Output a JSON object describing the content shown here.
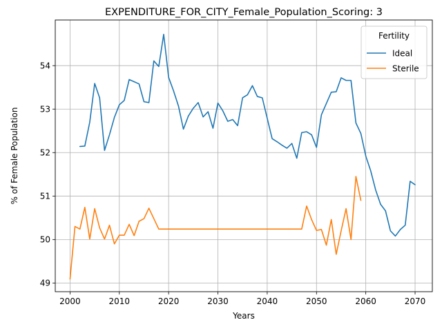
{
  "chart_data": {
    "type": "line",
    "title": "EXPENDITURE_FOR_CITY_Female_Population_Scoring: 3",
    "xlabel": "Years",
    "ylabel": "% of Female Population",
    "xlim": [
      1997,
      2073.5
    ],
    "ylim": [
      48.8,
      55.05
    ],
    "xticks": [
      2000,
      2010,
      2020,
      2030,
      2040,
      2050,
      2060,
      2070
    ],
    "yticks": [
      49,
      50,
      51,
      52,
      53,
      54
    ],
    "grid": true,
    "legend": {
      "title": "Fertility",
      "placement": "top-right"
    },
    "series": [
      {
        "name": "Ideal",
        "color": "#1f77b4",
        "x": [
          2002,
          2003,
          2004,
          2005,
          2006,
          2007,
          2008,
          2009,
          2010,
          2011,
          2012,
          2013,
          2014,
          2015,
          2016,
          2017,
          2018,
          2019,
          2020,
          2021,
          2022,
          2023,
          2024,
          2025,
          2026,
          2027,
          2028,
          2029,
          2030,
          2031,
          2032,
          2033,
          2034,
          2035,
          2036,
          2037,
          2038,
          2039,
          2040,
          2041,
          2042,
          2043,
          2044,
          2045,
          2046,
          2047,
          2048,
          2049,
          2050,
          2051,
          2052,
          2053,
          2054,
          2055,
          2056,
          2057,
          2058,
          2059,
          2060,
          2061,
          2062,
          2063,
          2064,
          2065,
          2066,
          2067,
          2068,
          2069,
          2070
        ],
        "values": [
          52.14,
          52.15,
          52.7,
          53.59,
          53.26,
          52.05,
          52.41,
          52.81,
          53.1,
          53.2,
          53.68,
          53.63,
          53.58,
          53.17,
          53.15,
          54.11,
          53.98,
          54.72,
          53.73,
          53.42,
          53.07,
          52.54,
          52.84,
          53.02,
          53.15,
          52.82,
          52.94,
          52.56,
          53.14,
          52.96,
          52.72,
          52.76,
          52.62,
          53.26,
          53.33,
          53.54,
          53.29,
          53.26,
          52.79,
          52.32,
          52.25,
          52.17,
          52.1,
          52.21,
          51.87,
          52.46,
          52.48,
          52.41,
          52.12,
          52.87,
          53.13,
          53.39,
          53.4,
          53.72,
          53.66,
          53.66,
          52.68,
          52.44,
          51.92,
          51.58,
          51.14,
          50.81,
          50.66,
          50.2,
          50.08,
          50.23,
          50.33,
          51.34,
          51.26
        ]
      },
      {
        "name": "Sterile",
        "color": "#ff7f0e",
        "x": [
          2000,
          2001,
          2002,
          2003,
          2004,
          2005,
          2006,
          2007,
          2008,
          2009,
          2010,
          2011,
          2012,
          2013,
          2014,
          2015,
          2016,
          2017,
          2018,
          2019,
          2020,
          2021,
          2022,
          2023,
          2024,
          2025,
          2026,
          2027,
          2028,
          2029,
          2030,
          2031,
          2032,
          2033,
          2034,
          2035,
          2036,
          2037,
          2038,
          2039,
          2040,
          2041,
          2042,
          2043,
          2044,
          2045,
          2046,
          2047,
          2048,
          2049,
          2050,
          2051,
          2052,
          2053,
          2054,
          2055,
          2056,
          2057,
          2058,
          2059
        ],
        "values": [
          49.09,
          50.3,
          50.24,
          50.74,
          50.01,
          50.71,
          50.27,
          50.01,
          50.33,
          49.9,
          50.1,
          50.1,
          50.35,
          50.09,
          50.42,
          50.48,
          50.72,
          50.48,
          50.24,
          50.24,
          50.24,
          50.24,
          50.24,
          50.24,
          50.24,
          50.24,
          50.24,
          50.24,
          50.24,
          50.24,
          50.24,
          50.24,
          50.24,
          50.24,
          50.24,
          50.24,
          50.24,
          50.24,
          50.24,
          50.24,
          50.24,
          50.24,
          50.24,
          50.24,
          50.24,
          50.24,
          50.24,
          50.24,
          50.77,
          50.46,
          50.21,
          50.23,
          49.87,
          50.46,
          49.66,
          50.2,
          50.71,
          50.0,
          51.45,
          50.9
        ]
      }
    ]
  }
}
